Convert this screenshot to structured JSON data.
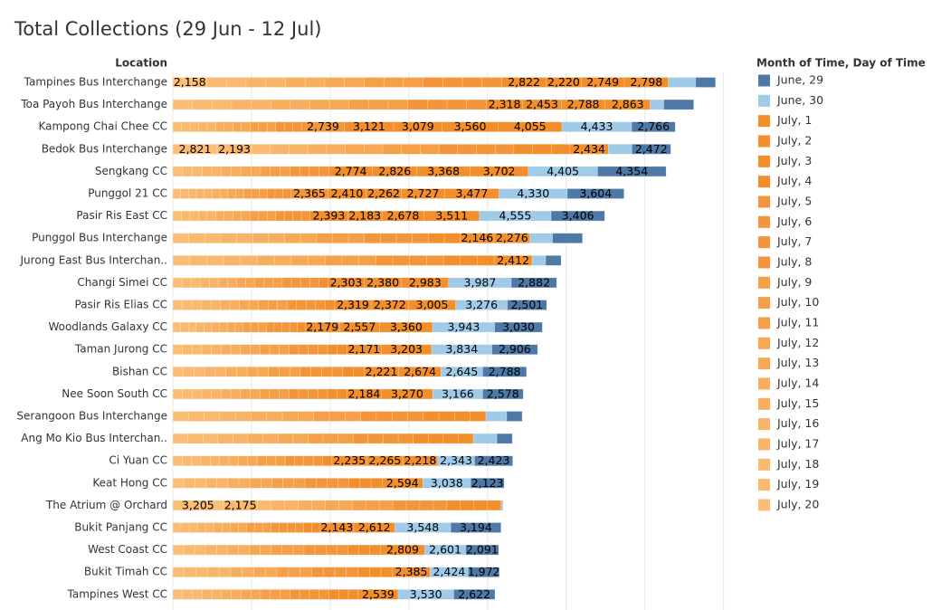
{
  "chart_data": {
    "type": "stacked-bar-horizontal",
    "title": "Total Collections (29 Jun - 12 Jul)",
    "y_label": "Location",
    "legend_title": "Month of Time, Day of Time",
    "legend_position": "right",
    "grid": true,
    "xlim": [
      0,
      36000
    ],
    "xticks": [
      0,
      5000,
      10000,
      15000,
      20000,
      25000,
      30000,
      35000
    ],
    "categories": [
      "Tampines Bus Interchange",
      "Toa Payoh Bus Interchange",
      "Kampong Chai Chee CC",
      "Bedok Bus Interchange",
      "Sengkang CC",
      "Punggol 21 CC",
      "Pasir Ris East CC",
      "Punggol Bus Interchange",
      "Jurong East Bus Interchan..",
      "Changi Simei CC",
      "Pasir Ris Elias CC",
      "Woodlands Galaxy CC",
      "Taman Jurong CC",
      "Bishan CC",
      "Nee Soon South CC",
      "Serangoon Bus Interchange",
      "Ang Mo Kio Bus Interchan..",
      "Ci Yuan CC",
      "Keat Hong CC",
      "The Atrium @ Orchard",
      "Bukit Panjang CC",
      "West Coast CC",
      "Bukit Timah CC",
      "Tampines West CC"
    ],
    "series": [
      {
        "name": "June, 29",
        "color": "#4e79a7",
        "values": [
          1265,
          1900,
          2766,
          2472,
          4354,
          3604,
          3406,
          1900,
          980,
          2882,
          2501,
          3030,
          2906,
          2788,
          2578,
          980,
          980,
          2423,
          2123,
          50,
          3194,
          2091,
          1972,
          2622
        ],
        "value_labels": [
          null,
          null,
          "2,766",
          "2,472",
          "4,354",
          "3,604",
          "3,406",
          null,
          null,
          "2,882",
          "2,501",
          "3,030",
          "2,906",
          "2,788",
          "2,578",
          null,
          null,
          "2,423",
          "2,123",
          null,
          "3,194",
          "2,091",
          "1,972",
          "2,622"
        ]
      },
      {
        "name": "June, 30",
        "color": "#a0cbe8",
        "values": [
          1725,
          860,
          4433,
          1495,
          4405,
          4330,
          4555,
          1440,
          860,
          3987,
          3276,
          3943,
          3834,
          2645,
          3166,
          1320,
          1495,
          2343,
          3038,
          50,
          3548,
          2601,
          2424,
          3530
        ],
        "value_labels": [
          null,
          null,
          "4,433",
          null,
          "4,405",
          "4,330",
          "4,555",
          null,
          null,
          "3,987",
          "3,276",
          "3,943",
          "3,834",
          "2,645",
          "3,166",
          null,
          null,
          "2,343",
          "3,038",
          null,
          "3,548",
          "2,601",
          "2,424",
          "3,530"
        ]
      },
      {
        "name": "July, 1",
        "color": "#f28e2b",
        "values": [
          2798,
          2863,
          4055,
          2434,
          3702,
          3477,
          3511,
          2276,
          2412,
          2983,
          3005,
          3360,
          3203,
          2674,
          3270,
          995,
          955,
          2218,
          2594,
          860,
          2612,
          2809,
          2385,
          2539
        ],
        "value_labels": [
          "2,798",
          "2,863",
          "4,055",
          "2,434",
          "3,702",
          "3,477",
          "3,511",
          "2,276",
          "2,412",
          "2,983",
          "3,005",
          "3,360",
          "3,203",
          "2,674",
          "3,270",
          null,
          null,
          "2,218",
          "2,594",
          null,
          "2,612",
          "2,809",
          "2,385",
          "2,539"
        ]
      },
      {
        "name": "July, 2",
        "color": "#f28e2b",
        "values": [
          2749,
          2788,
          3560,
          1190,
          3368,
          2727,
          2678,
          2146,
          1075,
          2380,
          2372,
          2557,
          2171,
          2221,
          2184,
          995,
          955,
          2265,
          700,
          860,
          2143,
          695,
          735,
          620
        ],
        "value_labels": [
          "2,749",
          "2,788",
          "3,560",
          null,
          "3,368",
          "2,727",
          "2,678",
          "2,146",
          null,
          "2,380",
          "2,372",
          "2,557",
          "2,171",
          "2,221",
          "2,184",
          null,
          null,
          "2,265",
          null,
          null,
          "2,143",
          null,
          null,
          null
        ]
      },
      {
        "name": "July, 3",
        "color": "#f28e2b",
        "values": [
          2220,
          2453,
          3079,
          1190,
          2826,
          2262,
          2183,
          1015,
          1075,
          2303,
          2319,
          2179,
          615,
          675,
          615,
          995,
          955,
          2235,
          700,
          860,
          520,
          695,
          735,
          620
        ],
        "value_labels": [
          "2,220",
          "2,453",
          "3,079",
          null,
          "2,826",
          "2,262",
          "2,183",
          null,
          null,
          "2,303",
          "2,319",
          "2,179",
          null,
          null,
          null,
          null,
          null,
          "2,235",
          null,
          null,
          null,
          null,
          null,
          null
        ]
      },
      {
        "name": "July, 4",
        "color": "#f28e2b",
        "values": [
          2822,
          2318,
          3121,
          1190,
          2774,
          2410,
          2393,
          1015,
          1075,
          580,
          605,
          495,
          615,
          675,
          615,
          995,
          955,
          595,
          700,
          860,
          520,
          695,
          735,
          620
        ],
        "value_labels": [
          "2,822",
          "2,318",
          "3,121",
          null,
          "2,774",
          "2,410",
          "2,393",
          null,
          null,
          null,
          null,
          null,
          null,
          null,
          null,
          null,
          null,
          null,
          null,
          null,
          null,
          null,
          null,
          null
        ]
      },
      {
        "name": "July, 5",
        "color": "#f3953a",
        "values": [
          1250,
          1245,
          2739,
          1190,
          620,
          2365,
          545,
          1015,
          1075,
          580,
          605,
          495,
          615,
          675,
          615,
          995,
          955,
          595,
          700,
          860,
          520,
          695,
          735,
          620
        ],
        "value_labels": [
          null,
          null,
          "2,739",
          null,
          null,
          "2,365",
          null,
          null,
          null,
          null,
          null,
          null,
          null,
          null,
          null,
          null,
          null,
          null,
          null,
          null,
          null,
          null,
          null,
          null
        ]
      },
      {
        "name": "July, 6",
        "color": "#f3953a",
        "values": [
          1250,
          1245,
          545,
          1190,
          620,
          500,
          545,
          1015,
          1075,
          580,
          605,
          495,
          615,
          675,
          615,
          995,
          955,
          595,
          700,
          860,
          520,
          695,
          735,
          620
        ]
      },
      {
        "name": "July, 7",
        "color": "#f3953a",
        "values": [
          1250,
          1245,
          545,
          1190,
          620,
          500,
          545,
          1015,
          1075,
          580,
          605,
          495,
          615,
          675,
          615,
          995,
          955,
          595,
          700,
          860,
          520,
          695,
          735,
          620
        ]
      },
      {
        "name": "July, 8",
        "color": "#f3953a",
        "values": [
          1250,
          1245,
          545,
          1190,
          620,
          500,
          545,
          1015,
          1075,
          580,
          605,
          495,
          615,
          675,
          615,
          995,
          955,
          595,
          700,
          860,
          520,
          695,
          735,
          620
        ]
      },
      {
        "name": "July, 9",
        "color": "#f59f48",
        "values": [
          1250,
          1245,
          545,
          1190,
          620,
          500,
          545,
          1015,
          1075,
          580,
          605,
          495,
          615,
          675,
          615,
          995,
          955,
          595,
          700,
          860,
          520,
          695,
          735,
          620
        ]
      },
      {
        "name": "July, 10",
        "color": "#f59f48",
        "values": [
          1250,
          1245,
          545,
          1190,
          620,
          500,
          545,
          1015,
          1075,
          580,
          605,
          495,
          615,
          675,
          615,
          995,
          955,
          595,
          700,
          860,
          520,
          695,
          735,
          620
        ]
      },
      {
        "name": "July, 11",
        "color": "#f59f48",
        "values": [
          1250,
          1245,
          545,
          1190,
          620,
          500,
          545,
          1015,
          1075,
          580,
          605,
          495,
          615,
          675,
          615,
          995,
          955,
          595,
          700,
          860,
          520,
          695,
          735,
          620
        ]
      },
      {
        "name": "July, 12",
        "color": "#f6a855",
        "values": [
          1250,
          1245,
          545,
          1190,
          620,
          500,
          545,
          1015,
          1075,
          580,
          605,
          495,
          615,
          675,
          615,
          995,
          955,
          595,
          700,
          860,
          520,
          695,
          735,
          620
        ]
      },
      {
        "name": "July, 13",
        "color": "#f6a855",
        "values": [
          1250,
          1245,
          545,
          1190,
          620,
          500,
          545,
          1015,
          1075,
          580,
          605,
          495,
          615,
          675,
          615,
          995,
          955,
          595,
          700,
          860,
          520,
          695,
          735,
          620
        ]
      },
      {
        "name": "July, 14",
        "color": "#f7ae5f",
        "values": [
          1250,
          1245,
          545,
          1190,
          620,
          500,
          545,
          1015,
          1075,
          580,
          605,
          495,
          615,
          675,
          615,
          995,
          955,
          595,
          700,
          860,
          520,
          695,
          735,
          620
        ]
      },
      {
        "name": "July, 15",
        "color": "#f7ae5f",
        "values": [
          1250,
          1245,
          545,
          1190,
          620,
          500,
          545,
          1015,
          1075,
          580,
          605,
          495,
          615,
          675,
          615,
          995,
          955,
          595,
          700,
          860,
          520,
          695,
          735,
          620
        ]
      },
      {
        "name": "July, 16",
        "color": "#f8b468",
        "values": [
          1250,
          1245,
          545,
          1190,
          620,
          500,
          545,
          1015,
          1075,
          580,
          605,
          495,
          615,
          675,
          615,
          995,
          955,
          595,
          700,
          860,
          520,
          695,
          735,
          620
        ]
      },
      {
        "name": "July, 17",
        "color": "#f8b468",
        "values": [
          1250,
          1245,
          545,
          1190,
          620,
          500,
          545,
          1015,
          1075,
          580,
          605,
          495,
          615,
          675,
          615,
          995,
          955,
          595,
          700,
          860,
          520,
          695,
          735,
          620
        ]
      },
      {
        "name": "July, 18",
        "color": "#f9b96f",
        "values": [
          1250,
          1245,
          545,
          1190,
          620,
          500,
          545,
          1015,
          1075,
          580,
          605,
          495,
          615,
          675,
          615,
          995,
          955,
          595,
          700,
          860,
          520,
          695,
          735,
          620
        ]
      },
      {
        "name": "July, 19",
        "color": "#f9b96f",
        "values": [
          1250,
          1245,
          545,
          2193,
          620,
          500,
          545,
          1015,
          1075,
          580,
          605,
          495,
          615,
          675,
          615,
          995,
          955,
          595,
          700,
          2175,
          520,
          695,
          735,
          620
        ],
        "value_labels": [
          null,
          null,
          null,
          "2,193",
          null,
          null,
          null,
          null,
          null,
          null,
          null,
          null,
          null,
          null,
          null,
          null,
          null,
          null,
          null,
          "2,175",
          null,
          null,
          null,
          null
        ]
      },
      {
        "name": "July, 20",
        "color": "#fbbe76",
        "values": [
          2158,
          1245,
          545,
          2821,
          620,
          500,
          545,
          1015,
          1075,
          580,
          605,
          495,
          615,
          675,
          615,
          995,
          955,
          595,
          700,
          3205,
          520,
          695,
          735,
          620
        ],
        "value_labels": [
          "2,158",
          null,
          null,
          "2,821",
          null,
          null,
          null,
          null,
          null,
          null,
          null,
          null,
          null,
          null,
          null,
          null,
          null,
          null,
          null,
          "3,205",
          null,
          null,
          null,
          null
        ]
      }
    ]
  }
}
